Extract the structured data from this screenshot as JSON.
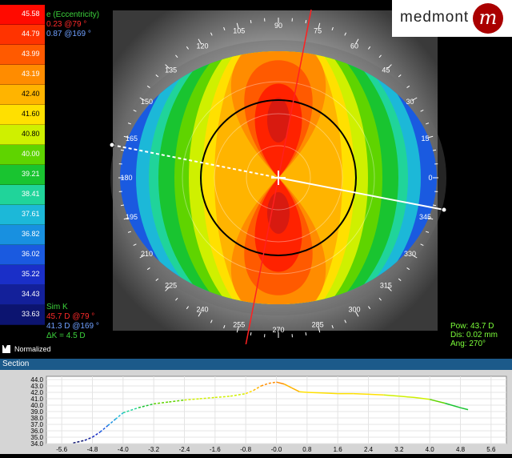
{
  "app": {
    "logo_text": "medmont",
    "logo_mark": "m"
  },
  "legend": {
    "values": [
      "45.58",
      "44.79",
      "43.99",
      "43.19",
      "42.40",
      "41.60",
      "40.80",
      "40.00",
      "39.21",
      "38.41",
      "37.61",
      "36.82",
      "36.02",
      "35.22",
      "34.43",
      "33.63"
    ],
    "colors": [
      "#ff0a00",
      "#ff3300",
      "#ff5a00",
      "#ff8c00",
      "#ffb400",
      "#ffe000",
      "#cff000",
      "#5fd400",
      "#19c430",
      "#20d49a",
      "#1cb8d8",
      "#1890e0",
      "#1a5ae0",
      "#1a2fc8",
      "#13209a",
      "#0c1470"
    ],
    "normalized_label": "Normalized"
  },
  "eccentricity": {
    "title": "e (Eccentricity)",
    "line1": "0.23 @79 °",
    "line2": "0.87 @169 °"
  },
  "simk": {
    "title": "Sim K",
    "line1": "45.7 D @79 °",
    "line2": "41.3 D @169 °",
    "line3": "ΔK = 4.5 D"
  },
  "cursor": {
    "pow": "Pow: 43.7 D",
    "dis": "Dis: 0.02 mm",
    "ang": "Ang: 270°"
  },
  "map": {
    "angle_labels": [
      "90",
      "75",
      "60",
      "45",
      "30",
      "15",
      "0",
      "345",
      "330",
      "315",
      "300",
      "285",
      "270",
      "255",
      "240",
      "225",
      "210",
      "195",
      "180",
      "165",
      "150",
      "135",
      "120",
      "105"
    ]
  },
  "section": {
    "title": "Section",
    "chart_data": {
      "type": "line",
      "x_ticks": [
        "-5.6",
        "-4.8",
        "-4.0",
        "-3.2",
        "-2.4",
        "-1.6",
        "-0.8",
        "-0.0",
        "0.8",
        "1.6",
        "2.4",
        "3.2",
        "4.0",
        "4.8",
        "5.6"
      ],
      "y_ticks": [
        "44.0",
        "43.0",
        "42.0",
        "41.0",
        "40.0",
        "39.0",
        "38.0",
        "37.0",
        "36.0",
        "35.0",
        "34.0"
      ],
      "xlim": [
        -6.0,
        6.0
      ],
      "ylim": [
        34.0,
        44.5
      ],
      "x": [
        -5.3,
        -5.0,
        -4.8,
        -4.6,
        -4.4,
        -4.2,
        -4.0,
        -3.6,
        -3.2,
        -2.8,
        -2.4,
        -2.0,
        -1.6,
        -1.2,
        -0.8,
        -0.6,
        -0.4,
        -0.2,
        0.0,
        0.2,
        0.4,
        0.6,
        0.8,
        1.2,
        1.6,
        2.0,
        2.4,
        2.8,
        3.2,
        3.6,
        4.0,
        4.4,
        4.8,
        5.0
      ],
      "y": [
        34.1,
        34.5,
        35.0,
        35.8,
        36.8,
        37.8,
        38.8,
        39.6,
        40.2,
        40.5,
        40.8,
        41.0,
        41.2,
        41.4,
        41.8,
        42.3,
        43.0,
        43.4,
        43.6,
        43.3,
        42.7,
        42.1,
        42.0,
        41.9,
        41.8,
        41.8,
        41.7,
        41.6,
        41.4,
        41.2,
        40.9,
        40.3,
        39.6,
        39.3
      ]
    }
  }
}
